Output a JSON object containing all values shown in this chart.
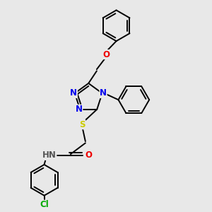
{
  "bg_color": "#e8e8e8",
  "atom_colors": {
    "N": "#0000ee",
    "O": "#ee0000",
    "S": "#cccc00",
    "Cl": "#00aa00",
    "C": "#000000",
    "H": "#555555"
  },
  "bond_color": "#000000",
  "bond_width": 1.4,
  "font_size": 8.5
}
